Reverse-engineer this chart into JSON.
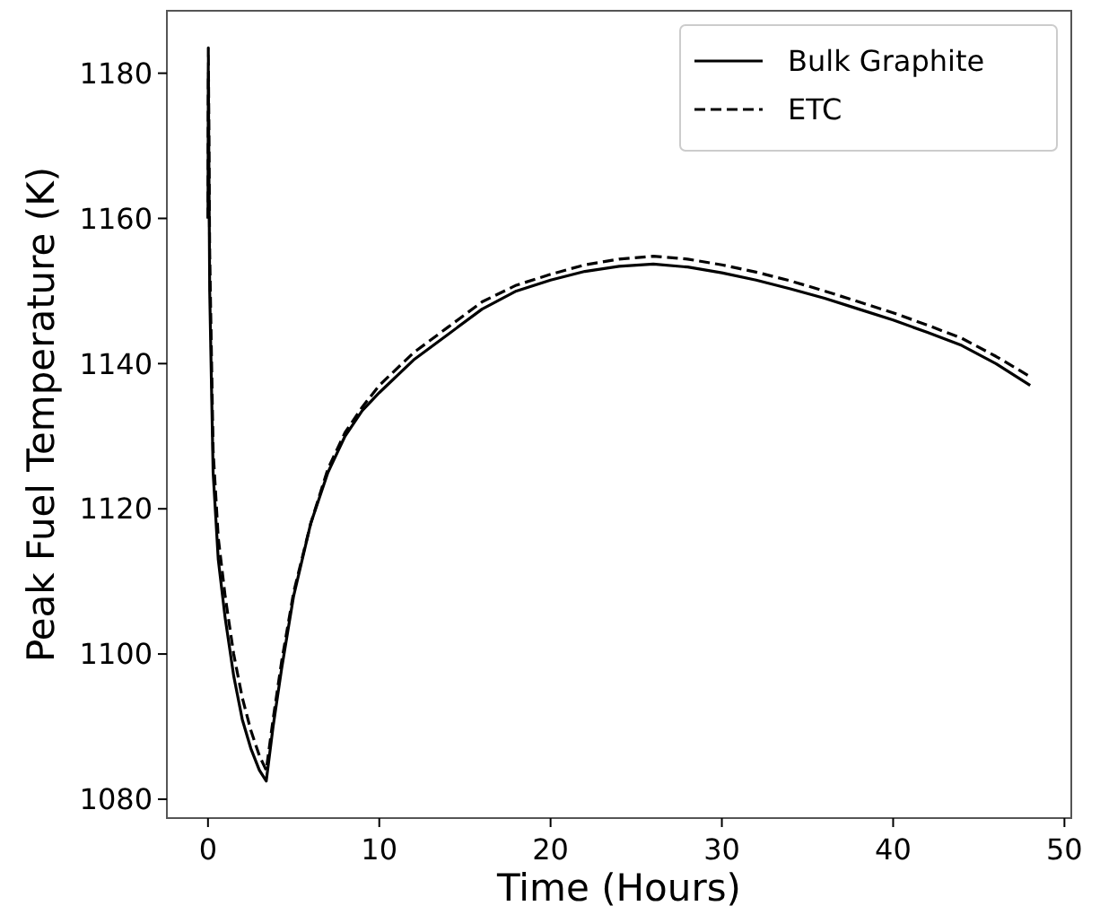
{
  "chart_data": {
    "type": "line",
    "xlabel": "Time (Hours)",
    "ylabel": "Peak Fuel Temperature (K)",
    "xlim": [
      -2.4,
      50.4
    ],
    "ylim": [
      1077.4,
      1188.6
    ],
    "xticks": [
      0,
      10,
      20,
      30,
      40,
      50
    ],
    "yticks": [
      1080,
      1100,
      1120,
      1140,
      1160,
      1180
    ],
    "legend": "top right",
    "grid": false,
    "series": [
      {
        "name": "Bulk Graphite",
        "color": "#000000",
        "line_style": "solid",
        "x": [
          0,
          0.02,
          0.1,
          0.3,
          0.6,
          1,
          1.5,
          2,
          2.5,
          3,
          3.4,
          3.8,
          4.3,
          5,
          6,
          7,
          8,
          9,
          10,
          12,
          14,
          16,
          18,
          20,
          22,
          24,
          26,
          28,
          30,
          32,
          34,
          36,
          38,
          40,
          42,
          44,
          46,
          48
        ],
        "values": [
          1160,
          1180,
          1150,
          1125,
          1113,
          1105,
          1097,
          1091,
          1087,
          1084,
          1082.5,
          1090,
          1098,
          1108,
          1118,
          1125,
          1130,
          1133.5,
          1136,
          1140.5,
          1144,
          1147.5,
          1150,
          1151.5,
          1152.7,
          1153.4,
          1153.7,
          1153.3,
          1152.5,
          1151.5,
          1150.3,
          1149,
          1147.5,
          1146,
          1144.3,
          1142.5,
          1140,
          1137
        ]
      },
      {
        "name": "ETC",
        "color": "#000000",
        "line_style": "dashed",
        "x": [
          0,
          0.02,
          0.1,
          0.3,
          0.6,
          1,
          1.5,
          2,
          2.5,
          3,
          3.4,
          3.8,
          4.3,
          5,
          6,
          7,
          8,
          9,
          10,
          12,
          14,
          16,
          18,
          20,
          22,
          24,
          26,
          28,
          30,
          32,
          34,
          36,
          38,
          40,
          42,
          44,
          46,
          48
        ],
        "values": [
          1160,
          1183.5,
          1155,
          1128,
          1116,
          1108,
          1100,
          1094,
          1089.5,
          1086,
          1084,
          1091,
          1099,
          1108.5,
          1118,
          1125.5,
          1130.5,
          1134,
          1137,
          1141.5,
          1145,
          1148.5,
          1150.8,
          1152.3,
          1153.6,
          1154.4,
          1154.8,
          1154.4,
          1153.6,
          1152.6,
          1151.4,
          1150,
          1148.5,
          1147,
          1145.3,
          1143.5,
          1141,
          1138.2
        ]
      }
    ]
  }
}
